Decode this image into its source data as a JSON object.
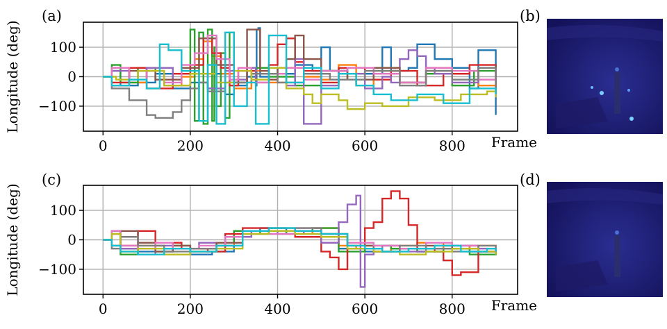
{
  "figure": {
    "panel_labels": [
      "(a)",
      "(b)",
      "(c)",
      "(d)"
    ],
    "heatmap_colors": {
      "background": "#1b1970",
      "highlight": "#3d6fd6",
      "spot": "#7ad0ff"
    }
  },
  "chart_data": [
    {
      "type": "line",
      "panel": "(a)",
      "xlabel": "Frame",
      "ylabel": "Longitude (deg)",
      "xlim": [
        -45,
        950
      ],
      "ylim": [
        -185,
        185
      ],
      "xticks": [
        0,
        200,
        400,
        600,
        800
      ],
      "yticks": [
        -100,
        0,
        100
      ],
      "grid": true,
      "step": true,
      "series": [
        {
          "color": "#1f77b4",
          "x": [
            0,
            20,
            40,
            80,
            120,
            160,
            200,
            240,
            260,
            280,
            300,
            330,
            350,
            352,
            356,
            360,
            380,
            400,
            440,
            480,
            500,
            520,
            560,
            600,
            640,
            660,
            700,
            720,
            760,
            800,
            840,
            860,
            900
          ],
          "y": [
            0,
            20,
            -30,
            -20,
            10,
            -40,
            -20,
            -40,
            10,
            -60,
            -30,
            0,
            -30,
            160,
            165,
            0,
            30,
            10,
            40,
            20,
            100,
            20,
            30,
            10,
            100,
            20,
            30,
            110,
            60,
            30,
            -40,
            90,
            -130
          ]
        },
        {
          "color": "#ff7f0e",
          "x": [
            0,
            20,
            60,
            100,
            140,
            180,
            210,
            230,
            250,
            270,
            300,
            340,
            380,
            420,
            460,
            500,
            540,
            580,
            620,
            680,
            740,
            800,
            860,
            900
          ],
          "y": [
            0,
            30,
            -20,
            20,
            -30,
            0,
            60,
            120,
            70,
            10,
            -40,
            20,
            -20,
            30,
            0,
            -10,
            40,
            -30,
            20,
            -20,
            30,
            -10,
            -30,
            -40
          ]
        },
        {
          "color": "#2ca02c",
          "x": [
            0,
            20,
            40,
            80,
            120,
            180,
            200,
            210,
            220,
            230,
            240,
            250,
            255,
            260,
            270,
            280,
            290,
            300,
            330,
            380,
            440,
            500,
            560,
            620,
            680,
            740,
            800,
            850,
            900
          ],
          "y": [
            0,
            40,
            -20,
            30,
            -10,
            20,
            160,
            -150,
            150,
            -160,
            160,
            -150,
            100,
            -100,
            80,
            -140,
            150,
            -20,
            30,
            0,
            -30,
            20,
            -10,
            30,
            -20,
            10,
            -30,
            20,
            10
          ]
        },
        {
          "color": "#d62728",
          "x": [
            0,
            20,
            60,
            100,
            160,
            200,
            230,
            250,
            270,
            290,
            310,
            350,
            380,
            400,
            420,
            440,
            460,
            500,
            540,
            600,
            660,
            720,
            780,
            840,
            900
          ],
          "y": [
            0,
            -20,
            30,
            -40,
            10,
            40,
            130,
            80,
            30,
            -30,
            20,
            -10,
            40,
            110,
            130,
            50,
            20,
            -20,
            30,
            -10,
            20,
            -30,
            10,
            40,
            -50
          ]
        },
        {
          "color": "#9467bd",
          "x": [
            0,
            20,
            60,
            100,
            160,
            200,
            240,
            280,
            300,
            330,
            350,
            380,
            420,
            440,
            460,
            500,
            540,
            560,
            600,
            640,
            660,
            680,
            700,
            720,
            740,
            760,
            800,
            860,
            900
          ],
          "y": [
            0,
            20,
            -10,
            30,
            -30,
            10,
            -40,
            20,
            -10,
            30,
            -20,
            10,
            -30,
            60,
            -160,
            -30,
            20,
            10,
            -40,
            0,
            -20,
            60,
            90,
            70,
            30,
            10,
            -20,
            30,
            -20
          ]
        },
        {
          "color": "#8c564b",
          "x": [
            0,
            20,
            60,
            120,
            180,
            220,
            260,
            300,
            330,
            360,
            380,
            400,
            420,
            440,
            460,
            500,
            560,
            620,
            680,
            740,
            800,
            860,
            900
          ],
          "y": [
            0,
            -30,
            20,
            -10,
            30,
            130,
            40,
            -20,
            160,
            20,
            -10,
            30,
            60,
            140,
            60,
            20,
            -10,
            30,
            -20,
            20,
            -10,
            30,
            40
          ]
        },
        {
          "color": "#e377c2",
          "x": [
            0,
            20,
            60,
            100,
            140,
            180,
            210,
            240,
            260,
            290,
            310,
            340,
            380,
            420,
            460,
            500,
            560,
            620,
            680,
            740,
            800,
            860,
            900
          ],
          "y": [
            0,
            30,
            -10,
            20,
            -20,
            40,
            80,
            140,
            60,
            -10,
            30,
            -20,
            10,
            30,
            -10,
            20,
            30,
            10,
            -20,
            30,
            20,
            -10,
            20
          ]
        },
        {
          "color": "#7f7f7f",
          "x": [
            0,
            20,
            60,
            100,
            120,
            160,
            180,
            200,
            220,
            240,
            280,
            340,
            400,
            460,
            520,
            600,
            680,
            740,
            800,
            860,
            900
          ],
          "y": [
            0,
            -40,
            -80,
            -130,
            -140,
            -120,
            -80,
            -40,
            -20,
            -50,
            -20,
            10,
            -20,
            10,
            -10,
            20,
            -30,
            20,
            -10,
            30,
            -40
          ]
        },
        {
          "color": "#bcbd22",
          "x": [
            0,
            30,
            80,
            140,
            200,
            260,
            300,
            340,
            380,
            420,
            460,
            480,
            500,
            540,
            560,
            600,
            640,
            700,
            760,
            820,
            880,
            900
          ],
          "y": [
            0,
            -10,
            20,
            -30,
            10,
            -20,
            20,
            -10,
            30,
            -40,
            -60,
            -90,
            -60,
            -80,
            -110,
            -90,
            -100,
            -70,
            -80,
            -60,
            -50,
            -70
          ]
        },
        {
          "color": "#17becf",
          "x": [
            0,
            20,
            60,
            100,
            130,
            150,
            180,
            220,
            240,
            260,
            280,
            300,
            330,
            350,
            380,
            420,
            460,
            500,
            540,
            580,
            620,
            660,
            720,
            780,
            840,
            900
          ],
          "y": [
            0,
            -30,
            -10,
            -40,
            110,
            90,
            20,
            -150,
            40,
            -160,
            150,
            -100,
            -20,
            -160,
            140,
            -20,
            30,
            -40,
            10,
            -30,
            -60,
            -80,
            -60,
            -90,
            -40,
            -60
          ]
        }
      ]
    },
    {
      "type": "line",
      "panel": "(c)",
      "xlabel": "Frame",
      "ylabel": "Longitude (deg)",
      "xlim": [
        -45,
        950
      ],
      "ylim": [
        -185,
        185
      ],
      "xticks": [
        0,
        200,
        400,
        600,
        800
      ],
      "yticks": [
        -100,
        0,
        100
      ],
      "grid": true,
      "step": true,
      "series": [
        {
          "color": "#1f77b4",
          "x": [
            0,
            20,
            40,
            80,
            140,
            200,
            250,
            300,
            360,
            420,
            480,
            540,
            600,
            660,
            720,
            780,
            840,
            900
          ],
          "y": [
            0,
            30,
            -30,
            -40,
            -30,
            -50,
            -40,
            30,
            40,
            30,
            20,
            -30,
            -40,
            -30,
            -40,
            -20,
            -40,
            -50
          ]
        },
        {
          "color": "#ff7f0e",
          "x": [
            0,
            20,
            40,
            80,
            140,
            200,
            260,
            300,
            360,
            420,
            480,
            540,
            580,
            620,
            660,
            720,
            780,
            840,
            900
          ],
          "y": [
            0,
            20,
            -40,
            -20,
            -50,
            -40,
            -20,
            20,
            30,
            20,
            40,
            -20,
            -30,
            -40,
            -20,
            -10,
            -30,
            -20,
            -40
          ]
        },
        {
          "color": "#2ca02c",
          "x": [
            0,
            20,
            40,
            80,
            120,
            160,
            200,
            260,
            300,
            360,
            420,
            480,
            540,
            600,
            660,
            720,
            780,
            840,
            900
          ],
          "y": [
            0,
            30,
            -50,
            -10,
            -40,
            -20,
            -30,
            -10,
            30,
            20,
            30,
            40,
            -40,
            -20,
            -30,
            -40,
            -30,
            -50,
            -40
          ]
        },
        {
          "color": "#d62728",
          "x": [
            0,
            20,
            40,
            80,
            120,
            180,
            240,
            280,
            320,
            380,
            440,
            500,
            520,
            540,
            560,
            600,
            620,
            640,
            660,
            680,
            700,
            720,
            760,
            780,
            800,
            820,
            860,
            900
          ],
          "y": [
            0,
            20,
            -20,
            30,
            -10,
            -30,
            -40,
            20,
            40,
            30,
            10,
            -40,
            -60,
            -100,
            -30,
            40,
            60,
            140,
            165,
            140,
            50,
            -30,
            -40,
            -70,
            -120,
            -110,
            -40,
            -30
          ]
        },
        {
          "color": "#9467bd",
          "x": [
            0,
            20,
            40,
            80,
            120,
            160,
            220,
            280,
            340,
            400,
            460,
            500,
            540,
            560,
            580,
            590,
            600,
            620,
            640,
            680,
            740,
            800,
            860,
            900
          ],
          "y": [
            0,
            30,
            -30,
            -50,
            -20,
            -30,
            -10,
            10,
            30,
            20,
            30,
            -10,
            60,
            120,
            150,
            -160,
            -50,
            -30,
            -20,
            -40,
            -30,
            -20,
            -30,
            -40
          ]
        },
        {
          "color": "#8c564b",
          "x": [
            0,
            20,
            40,
            80,
            120,
            160,
            200,
            260,
            320,
            380,
            440,
            500,
            560,
            620,
            680,
            740,
            800,
            860,
            900
          ],
          "y": [
            0,
            -20,
            30,
            -10,
            -40,
            -20,
            -40,
            -10,
            30,
            40,
            30,
            20,
            -20,
            -40,
            -30,
            -20,
            -30,
            -40,
            -30
          ]
        },
        {
          "color": "#e377c2",
          "x": [
            0,
            20,
            40,
            80,
            120,
            160,
            220,
            280,
            320,
            380,
            440,
            500,
            560,
            620,
            680,
            740,
            800,
            860,
            900
          ],
          "y": [
            0,
            30,
            -20,
            -30,
            -10,
            -30,
            -20,
            10,
            30,
            20,
            40,
            10,
            -10,
            -20,
            -30,
            -10,
            -20,
            -40,
            -30
          ]
        },
        {
          "color": "#7f7f7f",
          "x": [
            0,
            20,
            40,
            80,
            140,
            200,
            260,
            320,
            380,
            440,
            500,
            560,
            620,
            680,
            740,
            800,
            860,
            900
          ],
          "y": [
            0,
            -30,
            10,
            -20,
            -40,
            -30,
            -20,
            20,
            30,
            40,
            20,
            -30,
            -40,
            -20,
            -30,
            -40,
            -20,
            -30
          ]
        },
        {
          "color": "#bcbd22",
          "x": [
            0,
            20,
            40,
            80,
            140,
            200,
            260,
            320,
            380,
            440,
            500,
            560,
            620,
            680,
            740,
            800,
            860,
            900
          ],
          "y": [
            0,
            20,
            -40,
            -30,
            -50,
            -40,
            -30,
            20,
            30,
            20,
            10,
            -30,
            -40,
            -50,
            -40,
            -30,
            -40,
            -50
          ]
        },
        {
          "color": "#17becf",
          "x": [
            0,
            20,
            40,
            80,
            140,
            200,
            260,
            320,
            380,
            440,
            500,
            560,
            600,
            640,
            700,
            760,
            820,
            880,
            900
          ],
          "y": [
            0,
            -20,
            -40,
            -50,
            -30,
            -40,
            -20,
            30,
            40,
            30,
            20,
            -20,
            -30,
            -40,
            -30,
            -20,
            -40,
            -30,
            -40
          ]
        }
      ]
    }
  ]
}
